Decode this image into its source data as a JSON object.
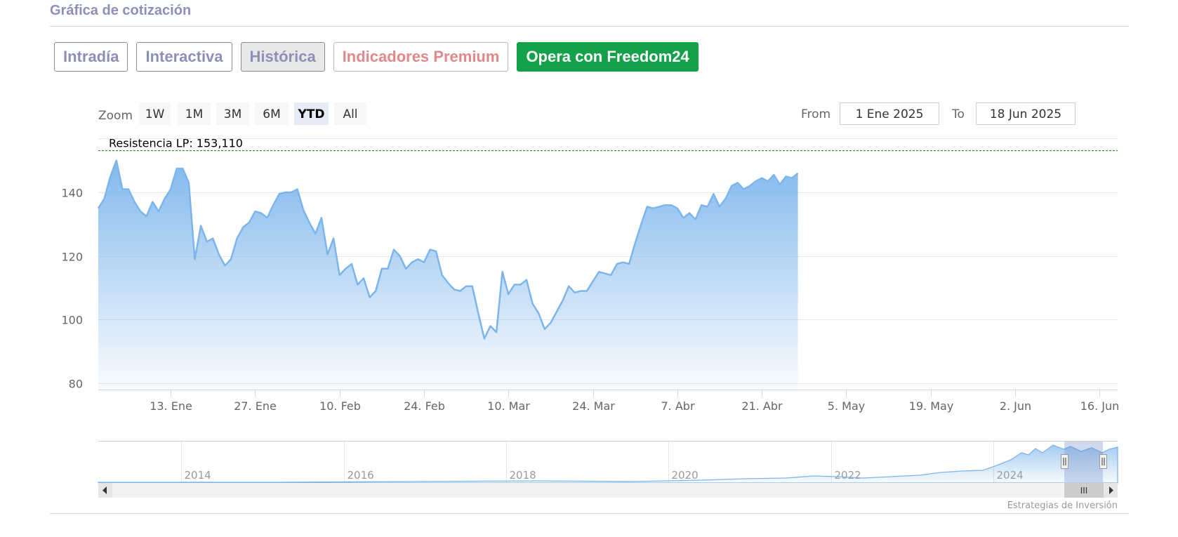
{
  "section_title": "Gráfica de cotización",
  "tabs": [
    {
      "label": "Intradía"
    },
    {
      "label": "Interactiva"
    },
    {
      "label": "Histórica"
    },
    {
      "label": "Indicadores Premium"
    },
    {
      "label": "Opera con Freedom24"
    }
  ],
  "colors": {
    "accent": "#8d8fb8",
    "premium": "#e0898a",
    "opera_bg": "#15a04a",
    "series_line": "#7cb5ec",
    "resistance_line": "#008000",
    "selected_zoom_bg": "#e6ebf5"
  },
  "zoom": {
    "label": "Zoom",
    "buttons": [
      "1W",
      "1M",
      "3M",
      "6M",
      "YTD",
      "All"
    ],
    "selected": "YTD"
  },
  "range": {
    "from_label": "From",
    "from_value": "1 Ene 2025",
    "to_label": "To",
    "to_value": "18 Jun 2025"
  },
  "navigator": {
    "year_labels": [
      "2014",
      "2016",
      "2018",
      "2020",
      "2022",
      "2024"
    ],
    "scroll_grip": "III"
  },
  "credits": "Estrategias de Inversión",
  "chart_data": {
    "type": "area",
    "title": "",
    "xlabel": "",
    "ylabel": "",
    "ylim": [
      78,
      157
    ],
    "y_ticks": [
      80,
      100,
      120,
      140
    ],
    "x_range": [
      "2025-01-01",
      "2025-06-18"
    ],
    "x_ticks": [
      {
        "date": "2025-01-13",
        "label": "13. Ene"
      },
      {
        "date": "2025-01-27",
        "label": "27. Ene"
      },
      {
        "date": "2025-02-10",
        "label": "10. Feb"
      },
      {
        "date": "2025-02-24",
        "label": "24. Feb"
      },
      {
        "date": "2025-03-10",
        "label": "10. Mar"
      },
      {
        "date": "2025-03-24",
        "label": "24. Mar"
      },
      {
        "date": "2025-04-07",
        "label": "7. Abr"
      },
      {
        "date": "2025-04-21",
        "label": "21. Abr"
      },
      {
        "date": "2025-05-05",
        "label": "5. May"
      },
      {
        "date": "2025-05-19",
        "label": "19. May"
      },
      {
        "date": "2025-06-02",
        "label": "2. Jun"
      },
      {
        "date": "2025-06-16",
        "label": "16. Jun"
      }
    ],
    "grid": true,
    "annotations": [
      {
        "type": "hline",
        "y": 153.11,
        "label": "Resistencia LP: 153,110",
        "style": "dashed"
      }
    ],
    "series": [
      {
        "points": [
          [
            "2025-01-01",
            135
          ],
          [
            "2025-01-02",
            138
          ],
          [
            "2025-01-03",
            145
          ],
          [
            "2025-01-04",
            150
          ],
          [
            "2025-01-05",
            141
          ],
          [
            "2025-01-06",
            141
          ],
          [
            "2025-01-07",
            137
          ],
          [
            "2025-01-08",
            134
          ],
          [
            "2025-01-09",
            132.5
          ],
          [
            "2025-01-10",
            137
          ],
          [
            "2025-01-11",
            134
          ],
          [
            "2025-01-12",
            138
          ],
          [
            "2025-01-13",
            141
          ],
          [
            "2025-01-14",
            147.5
          ],
          [
            "2025-01-15",
            147.5
          ],
          [
            "2025-01-16",
            143
          ],
          [
            "2025-01-17",
            119
          ],
          [
            "2025-01-18",
            129.5
          ],
          [
            "2025-01-19",
            124.5
          ],
          [
            "2025-01-20",
            125.5
          ],
          [
            "2025-01-21",
            120.5
          ],
          [
            "2025-01-22",
            117
          ],
          [
            "2025-01-23",
            119
          ],
          [
            "2025-01-24",
            125.5
          ],
          [
            "2025-01-25",
            129
          ],
          [
            "2025-01-26",
            130.5
          ],
          [
            "2025-01-27",
            134
          ],
          [
            "2025-01-28",
            133.5
          ],
          [
            "2025-01-29",
            132
          ],
          [
            "2025-01-30",
            136
          ],
          [
            "2025-01-31",
            139.5
          ],
          [
            "2025-02-01",
            140
          ],
          [
            "2025-02-02",
            140
          ],
          [
            "2025-02-03",
            141
          ],
          [
            "2025-02-04",
            134.5
          ],
          [
            "2025-02-05",
            130.5
          ],
          [
            "2025-02-06",
            127
          ],
          [
            "2025-02-07",
            132
          ],
          [
            "2025-02-08",
            120.5
          ],
          [
            "2025-02-09",
            125.5
          ],
          [
            "2025-02-10",
            114
          ],
          [
            "2025-02-11",
            116
          ],
          [
            "2025-02-12",
            117.5
          ],
          [
            "2025-02-13",
            111
          ],
          [
            "2025-02-14",
            113
          ],
          [
            "2025-02-15",
            107
          ],
          [
            "2025-02-16",
            109
          ],
          [
            "2025-02-17",
            116
          ],
          [
            "2025-02-18",
            116
          ],
          [
            "2025-02-19",
            122
          ],
          [
            "2025-02-20",
            120
          ],
          [
            "2025-02-21",
            116
          ],
          [
            "2025-02-22",
            118
          ],
          [
            "2025-02-23",
            119
          ],
          [
            "2025-02-24",
            118
          ],
          [
            "2025-02-25",
            122
          ],
          [
            "2025-02-26",
            121.5
          ],
          [
            "2025-02-27",
            114
          ],
          [
            "2025-02-28",
            111.5
          ],
          [
            "2025-03-01",
            109.5
          ],
          [
            "2025-03-02",
            109
          ],
          [
            "2025-03-03",
            110.5
          ],
          [
            "2025-03-04",
            110.5
          ],
          [
            "2025-03-05",
            102
          ],
          [
            "2025-03-06",
            94
          ],
          [
            "2025-03-07",
            98
          ],
          [
            "2025-03-08",
            96
          ],
          [
            "2025-03-09",
            115
          ],
          [
            "2025-03-10",
            108
          ],
          [
            "2025-03-11",
            111
          ],
          [
            "2025-03-12",
            111
          ],
          [
            "2025-03-13",
            112.5
          ],
          [
            "2025-03-14",
            105
          ],
          [
            "2025-03-15",
            102
          ],
          [
            "2025-03-16",
            97
          ],
          [
            "2025-03-17",
            99
          ],
          [
            "2025-03-18",
            102.5
          ],
          [
            "2025-03-19",
            106
          ],
          [
            "2025-03-20",
            110.5
          ],
          [
            "2025-03-21",
            108.5
          ],
          [
            "2025-03-22",
            109
          ],
          [
            "2025-03-23",
            109
          ],
          [
            "2025-03-24",
            112
          ],
          [
            "2025-03-25",
            115
          ],
          [
            "2025-03-26",
            114.5
          ],
          [
            "2025-03-27",
            114
          ],
          [
            "2025-03-28",
            117.5
          ],
          [
            "2025-03-29",
            118
          ],
          [
            "2025-03-30",
            117.5
          ],
          [
            "2025-03-31",
            124
          ],
          [
            "2025-04-01",
            130
          ],
          [
            "2025-04-02",
            135.5
          ],
          [
            "2025-04-03",
            135
          ],
          [
            "2025-04-04",
            135.5
          ],
          [
            "2025-04-05",
            136
          ],
          [
            "2025-04-06",
            136
          ],
          [
            "2025-04-07",
            135
          ],
          [
            "2025-04-08",
            132
          ],
          [
            "2025-04-09",
            133.5
          ],
          [
            "2025-04-10",
            131.5
          ],
          [
            "2025-04-11",
            136
          ],
          [
            "2025-04-12",
            135.5
          ],
          [
            "2025-04-13",
            139.5
          ],
          [
            "2025-04-14",
            135.5
          ],
          [
            "2025-04-15",
            138
          ],
          [
            "2025-04-16",
            142
          ],
          [
            "2025-04-17",
            143
          ],
          [
            "2025-04-18",
            141
          ],
          [
            "2025-04-19",
            142
          ],
          [
            "2025-04-20",
            143.5
          ],
          [
            "2025-04-21",
            144.5
          ],
          [
            "2025-04-22",
            143.5
          ],
          [
            "2025-04-23",
            145.5
          ],
          [
            "2025-04-24",
            142.5
          ],
          [
            "2025-04-25",
            145
          ],
          [
            "2025-04-26",
            144.5
          ],
          [
            "2025-04-27",
            146
          ]
        ]
      }
    ]
  }
}
